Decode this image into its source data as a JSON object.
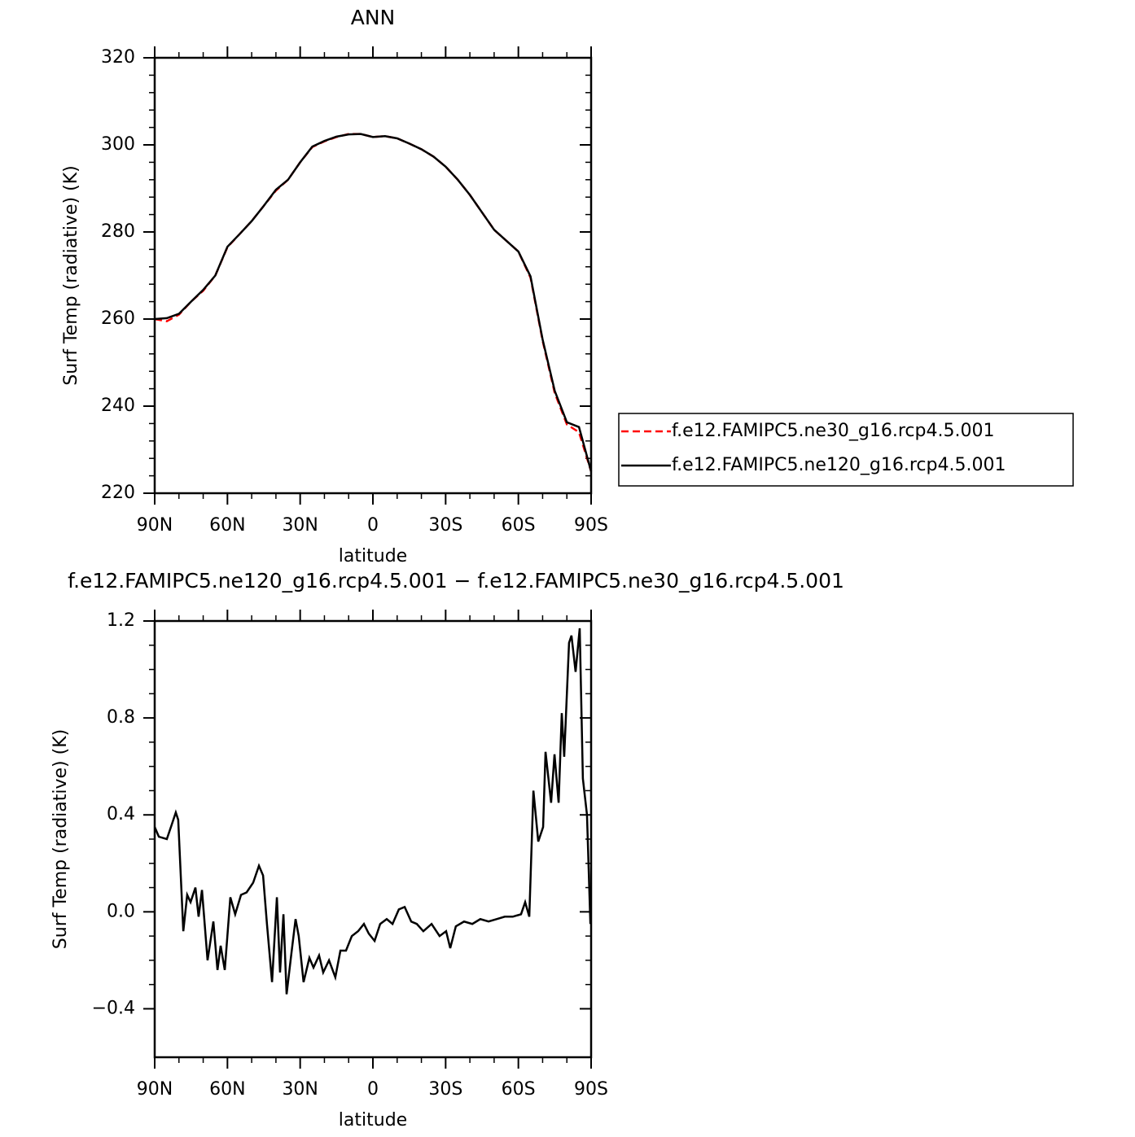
{
  "chart_data": [
    {
      "type": "line",
      "title": "ANN",
      "x_label": "latitude",
      "y_label": "Surf Temp (radiative) (K)",
      "x": [
        90,
        85,
        80,
        75,
        70,
        65,
        60,
        55,
        50,
        45,
        40,
        35,
        30,
        25,
        20,
        15,
        10,
        5,
        0,
        -5,
        -10,
        -15,
        -20,
        -25,
        -30,
        -35,
        -40,
        -45,
        -50,
        -55,
        -60,
        -65,
        -70,
        -75,
        -80,
        -85,
        -90
      ],
      "series": [
        {
          "name": "f.e12.FAMIPC5.ne30_g16.rcp4.5.001",
          "color": "#ff0000",
          "linestyle": "dashed",
          "values": [
            260,
            259.5,
            261,
            264,
            266.5,
            270,
            276.5,
            279.5,
            282.5,
            286,
            289.5,
            292,
            296,
            299.5,
            300.8,
            301.8,
            302.5,
            302.5,
            301.8,
            302,
            301.5,
            300.3,
            299,
            297.3,
            295,
            292,
            288.5,
            284.5,
            280.5,
            278,
            275.5,
            269.5,
            255,
            243,
            235.8,
            234,
            225
          ]
        },
        {
          "name": "f.e12.FAMIPC5.ne120_g16.rcp4.5.001",
          "color": "#000000",
          "linestyle": "solid",
          "values": [
            260,
            260.2,
            261.2,
            264,
            266.7,
            270,
            276.6,
            279.5,
            282.5,
            286,
            289.7,
            292,
            296,
            299.6,
            300.9,
            301.9,
            302.4,
            302.5,
            301.8,
            302,
            301.5,
            300.3,
            299,
            297.3,
            295,
            292,
            288.5,
            284.5,
            280.5,
            278,
            275.5,
            269.8,
            255.3,
            243.5,
            236.3,
            235.2,
            225
          ]
        }
      ],
      "xlim": [
        90,
        -90
      ],
      "xticks": [
        {
          "value": 90,
          "label": "90N"
        },
        {
          "value": 60,
          "label": "60N"
        },
        {
          "value": 30,
          "label": "30N"
        },
        0,
        {
          "value": -30,
          "label": "30S"
        },
        {
          "value": -60,
          "label": "60S"
        },
        {
          "value": -90,
          "label": "90S"
        }
      ],
      "ylim": [
        220,
        320
      ],
      "yticks": [
        220,
        240,
        260,
        280,
        300,
        320
      ],
      "legend": "right"
    },
    {
      "type": "line",
      "title": "f.e12.FAMIPC5.ne120_g16.rcp4.5.001 − f.e12.FAMIPC5.ne30_g16.rcp4.5.001",
      "x_label": "latitude",
      "y_label": "Surf Temp (radiative) (K)",
      "x": [
        90,
        88.3,
        85,
        83.3,
        81.3,
        80.3,
        78.2,
        76.6,
        75.2,
        73.2,
        71.9,
        70.5,
        68.2,
        65.8,
        64.1,
        62.8,
        61.1,
        58.8,
        56.8,
        54.4,
        52.1,
        49.4,
        47,
        45.3,
        43.7,
        41.6,
        39.6,
        38.3,
        36.9,
        35.6,
        33.6,
        31.9,
        30.6,
        28.6,
        26.2,
        24.5,
        22.2,
        20.5,
        18.1,
        15.5,
        13.4,
        11.1,
        8.7,
        6.1,
        3.7,
        1.7,
        -0.7,
        -3,
        -5.7,
        -8.1,
        -10.7,
        -13.1,
        -15.8,
        -18.1,
        -20.8,
        -24.2,
        -27.5,
        -30.2,
        -31.9,
        -34.2,
        -37.6,
        -41,
        -44.3,
        -47.7,
        -51,
        -54.4,
        -57.7,
        -61.1,
        -62.8,
        -64.5,
        -66.2,
        -68.2,
        -70.2,
        -71.2,
        -73.5,
        -74.9,
        -76.6,
        -77.9,
        -78.9,
        -80.9,
        -81.9,
        -83.6,
        -85.3,
        -86.6,
        -88.3,
        -89.7
      ],
      "series": [
        {
          "color": "#000000",
          "linestyle": "solid",
          "values": [
            0.35,
            0.31,
            0.3,
            0.35,
            0.41,
            0.38,
            -0.08,
            0.07,
            0.04,
            0.1,
            -0.02,
            0.09,
            -0.2,
            -0.04,
            -0.24,
            -0.14,
            -0.24,
            0.06,
            -0.01,
            0.07,
            0.08,
            0.12,
            0.19,
            0.15,
            -0.05,
            -0.29,
            0.06,
            -0.25,
            -0.01,
            -0.34,
            -0.17,
            -0.03,
            -0.1,
            -0.29,
            -0.19,
            -0.23,
            -0.18,
            -0.25,
            -0.2,
            -0.27,
            -0.16,
            -0.16,
            -0.1,
            -0.08,
            -0.05,
            -0.09,
            -0.12,
            -0.05,
            -0.03,
            -0.05,
            0.01,
            0.02,
            -0.04,
            -0.05,
            -0.08,
            -0.05,
            -0.1,
            -0.08,
            -0.15,
            -0.06,
            -0.04,
            -0.05,
            -0.03,
            -0.04,
            -0.03,
            -0.02,
            -0.02,
            -0.01,
            0.04,
            -0.02,
            0.5,
            0.29,
            0.35,
            0.66,
            0.45,
            0.65,
            0.45,
            0.82,
            0.64,
            1.11,
            1.14,
            0.99,
            1.17,
            0.55,
            0.4,
            -0.05
          ]
        }
      ],
      "xlim": [
        90,
        -90
      ],
      "xticks": [
        {
          "value": 90,
          "label": "90N"
        },
        {
          "value": 60,
          "label": "60N"
        },
        {
          "value": 30,
          "label": "30N"
        },
        0,
        {
          "value": -30,
          "label": "30S"
        },
        {
          "value": -60,
          "label": "60S"
        },
        {
          "value": -90,
          "label": "90S"
        }
      ],
      "ylim": [
        -0.6,
        1.2
      ],
      "yticks": [
        {
          "value": -0.4,
          "label": "−0.4"
        },
        {
          "value": 0,
          "label": "0.0"
        },
        {
          "value": 0.4,
          "label": "0.4"
        },
        {
          "value": 0.8,
          "label": "0.8"
        },
        {
          "value": 1.2,
          "label": "1.2"
        }
      ]
    }
  ]
}
